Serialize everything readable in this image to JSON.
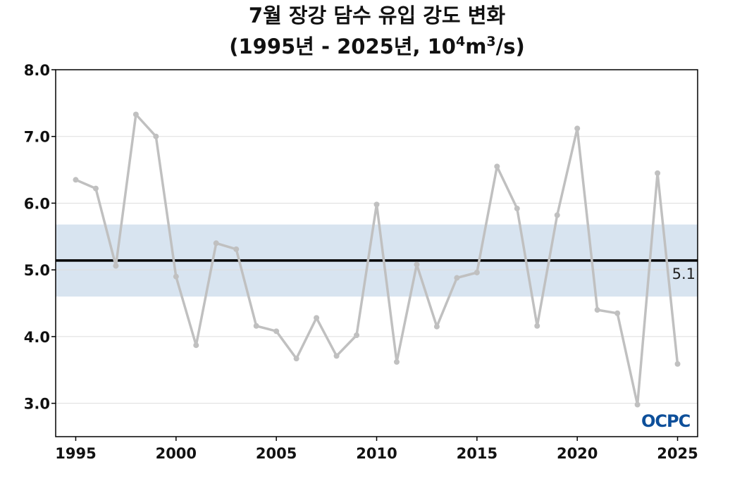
{
  "title_line1": "7월 장강 담수 유입 강도 변화",
  "title_line2_prefix": "(1995년 - 2025년, 10",
  "title_line2_exp1": "4",
  "title_line2_mid": "m",
  "title_line2_exp2": "3",
  "title_line2_suffix": "/s)",
  "logo_text": "OCPC",
  "colors": {
    "series_line": "#c0c0c0",
    "mean_line": "#000000",
    "band_fill": "#d8e4f0",
    "grid": "#dddddd",
    "logo": "#0d4f9a"
  },
  "chart_data": {
    "type": "line",
    "title": "7월 장강 담수 유입 강도 변화 (1995년 - 2025년, 10⁴m³/s)",
    "xlabel": "",
    "ylabel": "",
    "x": [
      1995,
      1996,
      1997,
      1998,
      1999,
      2000,
      2001,
      2002,
      2003,
      2004,
      2005,
      2006,
      2007,
      2008,
      2009,
      2010,
      2011,
      2012,
      2013,
      2014,
      2015,
      2016,
      2017,
      2018,
      2019,
      2020,
      2021,
      2022,
      2023,
      2024,
      2025
    ],
    "values": [
      6.35,
      6.22,
      5.06,
      7.33,
      7.0,
      4.9,
      3.87,
      5.4,
      5.31,
      4.16,
      4.08,
      3.67,
      4.28,
      3.71,
      4.02,
      5.98,
      3.62,
      5.08,
      4.15,
      4.88,
      4.96,
      6.55,
      5.92,
      4.16,
      5.82,
      7.12,
      4.4,
      4.35,
      2.98,
      6.45,
      3.59
    ],
    "mean": 5.14,
    "mean_label": "5.1",
    "band": [
      4.6,
      5.68
    ],
    "xlim": [
      1994,
      2026
    ],
    "ylim": [
      2.5,
      8.0
    ],
    "xticks": [
      1995,
      2000,
      2005,
      2010,
      2015,
      2020,
      2025
    ],
    "yticks": [
      "3.0",
      "4.0",
      "5.0",
      "6.0",
      "7.0",
      "8.0"
    ],
    "grid": true,
    "legend": "none"
  }
}
